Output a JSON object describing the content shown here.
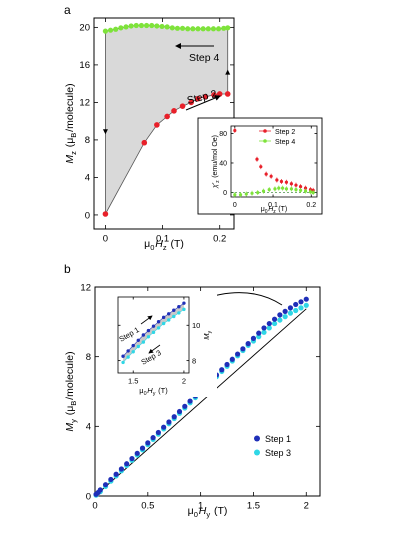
{
  "panels": {
    "a": "a",
    "b": "b"
  },
  "chart_data": [
    {
      "id": "a-main",
      "type": "line",
      "xlabel_html": "μ₀Hz (T)",
      "ylabel_html": "Mz (μB/molecule)",
      "xlabel": {
        "pre": "μ",
        "sub0": "0",
        "var": "H",
        "sub": "z",
        "post": " (T)"
      },
      "ylabel": {
        "var": "M",
        "sub": "z",
        "mid": " (μ",
        "sub2": "B",
        "post": "/molecule)"
      },
      "xlim": [
        -0.02,
        0.225
      ],
      "ylim": [
        -1.5,
        21
      ],
      "xticks": [
        0,
        0.1,
        0.2
      ],
      "xticklabels": [
        "0",
        "0.1",
        "0.2"
      ],
      "yticks": [
        0,
        4,
        8,
        12,
        16,
        20
      ],
      "yticklabels": [
        "0",
        "4",
        "8",
        "12",
        "16",
        "20"
      ],
      "shaded_region_color": "#d9d9d9",
      "annotations": [
        "Step 4",
        "Step 2"
      ],
      "series": [
        {
          "name": "Step 4",
          "color": "#7ee33a",
          "x": [
            0.0,
            0.009,
            0.018,
            0.027,
            0.036,
            0.045,
            0.054,
            0.063,
            0.072,
            0.081,
            0.09,
            0.099,
            0.108,
            0.117,
            0.126,
            0.135,
            0.144,
            0.153,
            0.162,
            0.171,
            0.18,
            0.189,
            0.198,
            0.207,
            0.214
          ],
          "y": [
            19.6,
            19.7,
            19.8,
            19.95,
            20.05,
            20.15,
            20.2,
            20.2,
            20.2,
            20.2,
            20.15,
            20.1,
            20.05,
            19.95,
            19.9,
            19.9,
            19.85,
            19.85,
            19.85,
            19.85,
            19.85,
            19.85,
            19.85,
            19.9,
            19.95
          ]
        },
        {
          "name": "Step 2",
          "color": "#e8202a",
          "x": [
            0.0,
            0.068,
            0.09,
            0.108,
            0.12,
            0.135,
            0.15,
            0.162,
            0.175,
            0.19,
            0.2,
            0.214
          ],
          "y": [
            0.1,
            7.7,
            9.6,
            10.5,
            11.1,
            11.6,
            12.0,
            12.4,
            12.6,
            12.8,
            12.9,
            12.9
          ]
        }
      ],
      "guide_line": {
        "x": [
          0.0,
          0.068
        ],
        "y": [
          0.1,
          7.7
        ]
      }
    },
    {
      "id": "a-inset",
      "type": "scatter",
      "ylabel_html": "χ'z (emu/mol Oe)",
      "xlabel_html": "μ₀Hz (T)",
      "ylabel": {
        "var": "χ'",
        "sub": "z",
        "post": " (emu/mol Oe)"
      },
      "xlabel": {
        "pre": "μ",
        "sub0": "0",
        "var": "H",
        "sub": "z",
        "post": " (T)"
      },
      "xlim": [
        -0.01,
        0.215
      ],
      "ylim": [
        -6,
        90
      ],
      "xticks": [
        0,
        0.1,
        0.2
      ],
      "xticklabels": [
        "0",
        "0.1",
        "0.2"
      ],
      "yticks": [
        0,
        40,
        80
      ],
      "yticklabels": [
        "0",
        "40",
        "80"
      ],
      "legend": "top-right",
      "series": [
        {
          "name": "Step 2",
          "color": "#e8202a",
          "x": [
            0.0,
            0.058,
            0.068,
            0.082,
            0.095,
            0.11,
            0.122,
            0.135,
            0.148,
            0.16,
            0.172,
            0.185,
            0.198,
            0.205
          ],
          "y": [
            84,
            45,
            35,
            25,
            22,
            17,
            15,
            14,
            12,
            10,
            8,
            6,
            4,
            3
          ]
        },
        {
          "name": "Step 4",
          "color": "#7ee33a",
          "x": [
            0.0,
            0.015,
            0.03,
            0.045,
            0.06,
            0.075,
            0.09,
            0.105,
            0.115,
            0.125,
            0.135,
            0.148,
            0.16,
            0.172,
            0.185,
            0.198,
            0.205
          ],
          "y": [
            -3,
            -3,
            -2,
            -1,
            0,
            2,
            4,
            5,
            6,
            6,
            5,
            5,
            4,
            3,
            2,
            1,
            0
          ]
        }
      ]
    },
    {
      "id": "b-main",
      "type": "scatter",
      "xlabel_html": "μ₀Hy (T)",
      "ylabel_html": "My (μB/molecule)",
      "xlabel": {
        "pre": "μ",
        "sub0": "0",
        "var": "H",
        "sub": "y",
        "post": " (T)"
      },
      "ylabel": {
        "var": "M",
        "sub": "y",
        "mid": " (μ",
        "sub2": "B",
        "post": "/molecule)"
      },
      "xlim": [
        0,
        2.13
      ],
      "ylim": [
        0,
        12
      ],
      "xticks": [
        0,
        0.5,
        1,
        1.5,
        2
      ],
      "xticklabels": [
        "0",
        "0.5",
        "1",
        "1.5",
        "2"
      ],
      "yticks": [
        0,
        4,
        8,
        12
      ],
      "yticklabels": [
        "0",
        "4",
        "8",
        "12"
      ],
      "legend": "bottom-right",
      "series": [
        {
          "name": "Step 1",
          "color": "#1f2fb8",
          "x": [
            0.01,
            0.03,
            0.05,
            0.1,
            0.15,
            0.2,
            0.25,
            0.3,
            0.35,
            0.4,
            0.45,
            0.5,
            0.55,
            0.6,
            0.65,
            0.7,
            0.75,
            0.8,
            0.85,
            0.9,
            0.95,
            1.0,
            1.05,
            1.1,
            1.15,
            1.2,
            1.25,
            1.3,
            1.35,
            1.4,
            1.45,
            1.5,
            1.55,
            1.6,
            1.65,
            1.7,
            1.75,
            1.8,
            1.85,
            1.9,
            1.95,
            2.0
          ],
          "y": [
            0.1,
            0.2,
            0.35,
            0.65,
            0.95,
            1.25,
            1.55,
            1.85,
            2.15,
            2.45,
            2.75,
            3.05,
            3.35,
            3.65,
            3.95,
            4.25,
            4.55,
            4.85,
            5.15,
            5.45,
            5.75,
            6.05,
            6.35,
            6.65,
            6.95,
            7.25,
            7.55,
            7.85,
            8.15,
            8.45,
            8.75,
            9.05,
            9.35,
            9.65,
            9.9,
            10.15,
            10.4,
            10.6,
            10.8,
            11.0,
            11.15,
            11.3
          ]
        },
        {
          "name": "Step 3",
          "color": "#2fd7e6",
          "x": [
            0.01,
            0.05,
            0.1,
            0.15,
            0.2,
            0.25,
            0.3,
            0.35,
            0.4,
            0.45,
            0.5,
            0.55,
            0.6,
            0.65,
            0.7,
            0.75,
            0.8,
            0.85,
            0.9,
            0.95,
            1.0,
            1.05,
            1.1,
            1.15,
            1.2,
            1.25,
            1.3,
            1.35,
            1.4,
            1.45,
            1.5,
            1.55,
            1.6,
            1.65,
            1.7,
            1.75,
            1.8,
            1.85,
            1.9,
            1.95,
            2.0
          ],
          "y": [
            0.05,
            0.25,
            0.55,
            0.85,
            1.15,
            1.45,
            1.75,
            2.05,
            2.35,
            2.65,
            2.95,
            3.25,
            3.55,
            3.85,
            4.15,
            4.45,
            4.75,
            5.05,
            5.35,
            5.65,
            5.95,
            6.25,
            6.55,
            6.85,
            7.15,
            7.45,
            7.75,
            8.05,
            8.35,
            8.65,
            8.9,
            9.15,
            9.4,
            9.65,
            9.9,
            10.1,
            10.3,
            10.5,
            10.65,
            10.8,
            10.95
          ]
        }
      ],
      "reference_line": {
        "x": [
          0,
          2.0
        ],
        "y": [
          0,
          10.75
        ]
      }
    },
    {
      "id": "b-inset",
      "type": "scatter",
      "xlabel_html": "μ₀Hy (T)",
      "ylabel_html": "My",
      "xlabel": {
        "pre": "μ",
        "sub0": "0",
        "var": "H",
        "sub": "y",
        "post": " (T)"
      },
      "ylabel": {
        "var": "M",
        "sub": "y",
        "post": ""
      },
      "xlim": [
        1.35,
        2.05
      ],
      "ylim": [
        7.3,
        11.6
      ],
      "xticks": [
        1.5,
        2
      ],
      "xticklabels": [
        "1.5",
        "2"
      ],
      "yticks": [
        8,
        10
      ],
      "yticklabels": [
        "8",
        "10"
      ],
      "annotations": [
        "Step 1",
        "Step 3"
      ],
      "series": [
        {
          "name": "Step 1",
          "color": "#1f2fb8",
          "x": [
            1.4,
            1.45,
            1.5,
            1.55,
            1.6,
            1.65,
            1.7,
            1.75,
            1.8,
            1.85,
            1.9,
            1.95,
            2.0
          ],
          "y": [
            8.25,
            8.55,
            8.85,
            9.15,
            9.45,
            9.7,
            9.95,
            10.2,
            10.45,
            10.65,
            10.85,
            11.05,
            11.25
          ]
        },
        {
          "name": "Step 3",
          "color": "#2fd7e6",
          "x": [
            1.4,
            1.45,
            1.5,
            1.55,
            1.6,
            1.65,
            1.7,
            1.75,
            1.8,
            1.85,
            1.9,
            1.95,
            2.0
          ],
          "y": [
            7.9,
            8.2,
            8.5,
            8.8,
            9.05,
            9.35,
            9.6,
            9.85,
            10.1,
            10.3,
            10.5,
            10.7,
            10.9
          ]
        }
      ]
    }
  ]
}
